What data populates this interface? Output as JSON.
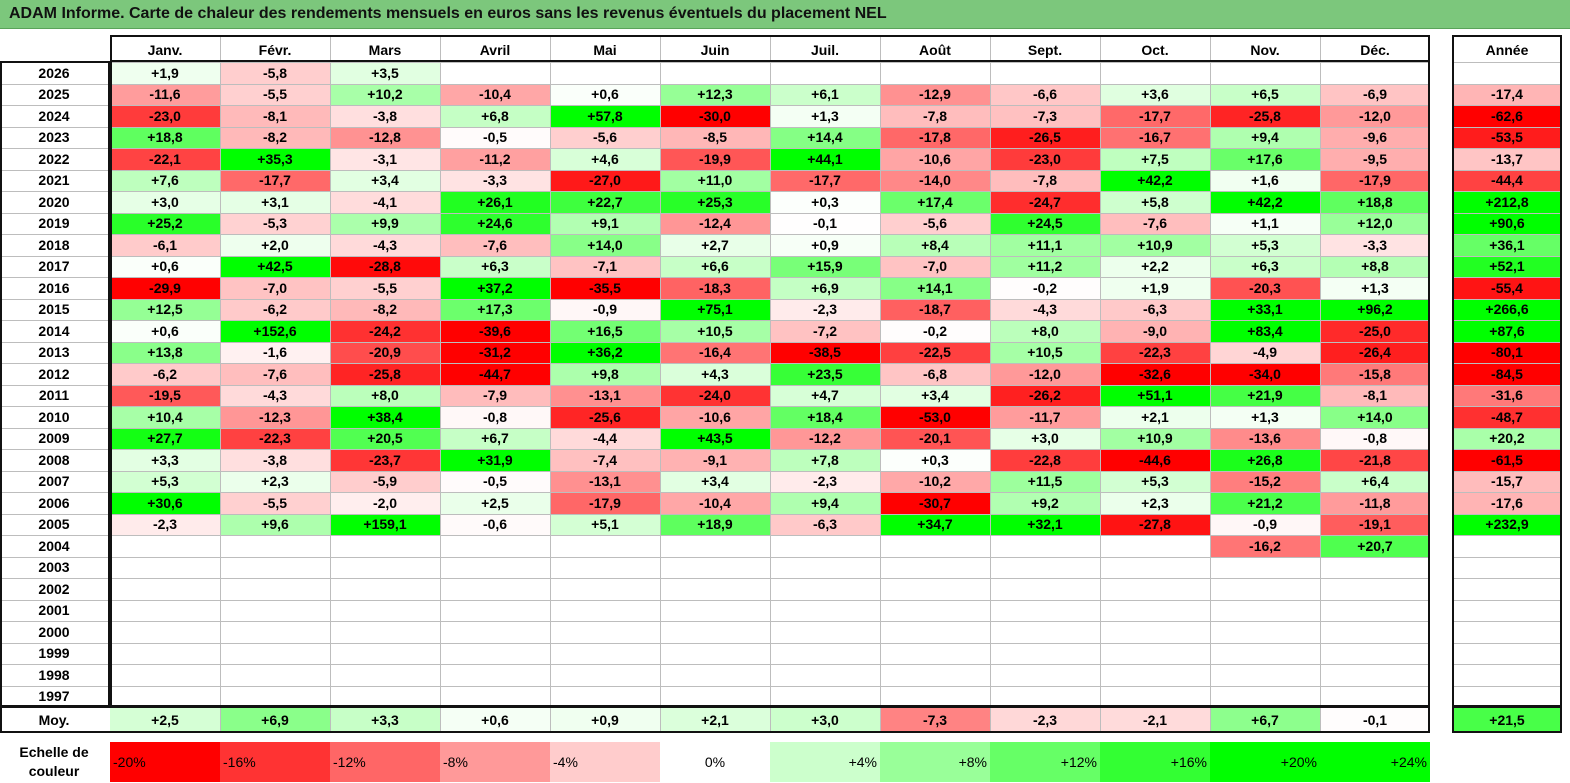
{
  "title": "ADAM Informe. Carte de chaleur des rendements mensuels en euros sans les revenus éventuels du placement NEL",
  "months": [
    "Janv.",
    "Févr.",
    "Mars",
    "Avril",
    "Mai",
    "Juin",
    "Juil.",
    "Août",
    "Sept.",
    "Oct.",
    "Nov.",
    "Déc."
  ],
  "year_header": "Année",
  "years": [
    "2026",
    "2025",
    "2024",
    "2023",
    "2022",
    "2021",
    "2020",
    "2019",
    "2018",
    "2017",
    "2016",
    "2015",
    "2014",
    "2013",
    "2012",
    "2011",
    "2010",
    "2009",
    "2008",
    "2007",
    "2006",
    "2005",
    "2004",
    "2003",
    "2002",
    "2001",
    "2000",
    "1999",
    "1998",
    "1997"
  ],
  "rows": [
    [
      "+1,9",
      "-5,8",
      "+3,5",
      "",
      "",
      "",
      "",
      "",
      "",
      "",
      "",
      ""
    ],
    [
      "-11,6",
      "-5,5",
      "+10,2",
      "-10,4",
      "+0,6",
      "+12,3",
      "+6,1",
      "-12,9",
      "-6,6",
      "+3,6",
      "+6,5",
      "-6,9"
    ],
    [
      "-23,0",
      "-8,1",
      "-3,8",
      "+6,8",
      "+57,8",
      "-30,0",
      "+1,3",
      "-7,8",
      "-7,3",
      "-17,7",
      "-25,8",
      "-12,0"
    ],
    [
      "+18,8",
      "-8,2",
      "-12,8",
      "-0,5",
      "-5,6",
      "-8,5",
      "+14,4",
      "-17,8",
      "-26,5",
      "-16,7",
      "+9,4",
      "-9,6"
    ],
    [
      "-22,1",
      "+35,3",
      "-3,1",
      "-11,2",
      "+4,6",
      "-19,9",
      "+44,1",
      "-10,6",
      "-23,0",
      "+7,5",
      "+17,6",
      "-9,5"
    ],
    [
      "+7,6",
      "-17,7",
      "+3,4",
      "-3,3",
      "-27,0",
      "+11,0",
      "-17,7",
      "-14,0",
      "-7,8",
      "+42,2",
      "+1,6",
      "-17,9"
    ],
    [
      "+3,0",
      "+3,1",
      "-4,1",
      "+26,1",
      "+22,7",
      "+25,3",
      "+0,3",
      "+17,4",
      "-24,7",
      "+5,8",
      "+42,2",
      "+18,8"
    ],
    [
      "+25,2",
      "-5,3",
      "+9,9",
      "+24,6",
      "+9,1",
      "-12,4",
      "-0,1",
      "-5,6",
      "+24,5",
      "-7,6",
      "+1,1",
      "+12,0"
    ],
    [
      "-6,1",
      "+2,0",
      "-4,3",
      "-7,6",
      "+14,0",
      "+2,7",
      "+0,9",
      "+8,4",
      "+11,1",
      "+10,9",
      "+5,3",
      "-3,3"
    ],
    [
      "+0,6",
      "+42,5",
      "-28,8",
      "+6,3",
      "-7,1",
      "+6,6",
      "+15,9",
      "-7,0",
      "+11,2",
      "+2,2",
      "+6,3",
      "+8,8"
    ],
    [
      "-29,9",
      "-7,0",
      "-5,5",
      "+37,2",
      "-35,5",
      "-18,3",
      "+6,9",
      "+14,1",
      "-0,2",
      "+1,9",
      "-20,3",
      "+1,3"
    ],
    [
      "+12,5",
      "-6,2",
      "-8,2",
      "+17,3",
      "-0,9",
      "+75,1",
      "-2,3",
      "-18,7",
      "-4,3",
      "-6,3",
      "+33,1",
      "+96,2"
    ],
    [
      "+0,6",
      "+152,6",
      "-24,2",
      "-39,6",
      "+16,5",
      "+10,5",
      "-7,2",
      "-0,2",
      "+8,0",
      "-9,0",
      "+83,4",
      "-25,0"
    ],
    [
      "+13,8",
      "-1,6",
      "-20,9",
      "-31,2",
      "+36,2",
      "-16,4",
      "-38,5",
      "-22,5",
      "+10,5",
      "-22,3",
      "-4,9",
      "-26,4"
    ],
    [
      "-6,2",
      "-7,6",
      "-25,8",
      "-44,7",
      "+9,8",
      "+4,3",
      "+23,5",
      "-6,8",
      "-12,0",
      "-32,6",
      "-34,0",
      "-15,8"
    ],
    [
      "-19,5",
      "-4,3",
      "+8,0",
      "-7,9",
      "-13,1",
      "-24,0",
      "+4,7",
      "+3,4",
      "-26,2",
      "+51,1",
      "+21,9",
      "-8,1"
    ],
    [
      "+10,4",
      "-12,3",
      "+38,4",
      "-0,8",
      "-25,6",
      "-10,6",
      "+18,4",
      "-53,0",
      "-11,7",
      "+2,1",
      "+1,3",
      "+14,0"
    ],
    [
      "+27,7",
      "-22,3",
      "+20,5",
      "+6,7",
      "-4,4",
      "+43,5",
      "-12,2",
      "-20,1",
      "+3,0",
      "+10,9",
      "-13,6",
      "-0,8"
    ],
    [
      "+3,3",
      "-3,8",
      "-23,7",
      "+31,9",
      "-7,4",
      "-9,1",
      "+7,8",
      "+0,3",
      "-22,8",
      "-44,6",
      "+26,8",
      "-21,8"
    ],
    [
      "+5,3",
      "+2,3",
      "-5,9",
      "-0,5",
      "-13,1",
      "+3,4",
      "-2,3",
      "-10,2",
      "+11,5",
      "+5,3",
      "-15,2",
      "+6,4"
    ],
    [
      "+30,6",
      "-5,5",
      "-2,0",
      "+2,5",
      "-17,9",
      "-10,4",
      "+9,4",
      "-30,7",
      "+9,2",
      "+2,3",
      "+21,2",
      "-11,8"
    ],
    [
      "-2,3",
      "+9,6",
      "+159,1",
      "-0,6",
      "+5,1",
      "+18,9",
      "-6,3",
      "+34,7",
      "+32,1",
      "-27,8",
      "-0,9",
      "-19,1"
    ],
    [
      "",
      "",
      "",
      "",
      "",
      "",
      "",
      "",
      "",
      "",
      "-16,2",
      "+20,7"
    ],
    [
      "",
      "",
      "",
      "",
      "",
      "",
      "",
      "",
      "",
      "",
      "",
      ""
    ],
    [
      "",
      "",
      "",
      "",
      "",
      "",
      "",
      "",
      "",
      "",
      "",
      ""
    ],
    [
      "",
      "",
      "",
      "",
      "",
      "",
      "",
      "",
      "",
      "",
      "",
      ""
    ],
    [
      "",
      "",
      "",
      "",
      "",
      "",
      "",
      "",
      "",
      "",
      "",
      ""
    ],
    [
      "",
      "",
      "",
      "",
      "",
      "",
      "",
      "",
      "",
      "",
      "",
      ""
    ],
    [
      "",
      "",
      "",
      "",
      "",
      "",
      "",
      "",
      "",
      "",
      "",
      ""
    ],
    [
      "",
      "",
      "",
      "",
      "",
      "",
      "",
      "",
      "",
      "",
      "",
      ""
    ]
  ],
  "year_totals": [
    "",
    "-17,4",
    "-62,6",
    "-53,5",
    "-13,7",
    "-44,4",
    "+212,8",
    "+90,6",
    "+36,1",
    "+52,1",
    "-55,4",
    "+266,6",
    "+87,6",
    "-80,1",
    "-84,5",
    "-31,6",
    "-48,7",
    "+20,2",
    "-61,5",
    "-15,7",
    "-17,6",
    "+232,9",
    "",
    "",
    "",
    "",
    "",
    "",
    "",
    ""
  ],
  "avg_label": "Moy.",
  "avg_values": [
    "+2,5",
    "+6,9",
    "+3,3",
    "+0,6",
    "+0,9",
    "+2,1",
    "+3,0",
    "-7,3",
    "-2,3",
    "-2,1",
    "+6,7",
    "-0,1"
  ],
  "avg_total": "+21,5",
  "scale_label": "Echelle de couleur",
  "scale_items": [
    "-20%",
    "-16%",
    "-12%",
    "-8%",
    "-4%",
    "0%",
    "+4%",
    "+8%",
    "+12%",
    "+16%",
    "+20%",
    "+24%"
  ],
  "colors": {
    "negative": "#ff0000",
    "zero": "#ffffff",
    "positive": "#00ff00",
    "title_bg": "#7cc77c"
  }
}
